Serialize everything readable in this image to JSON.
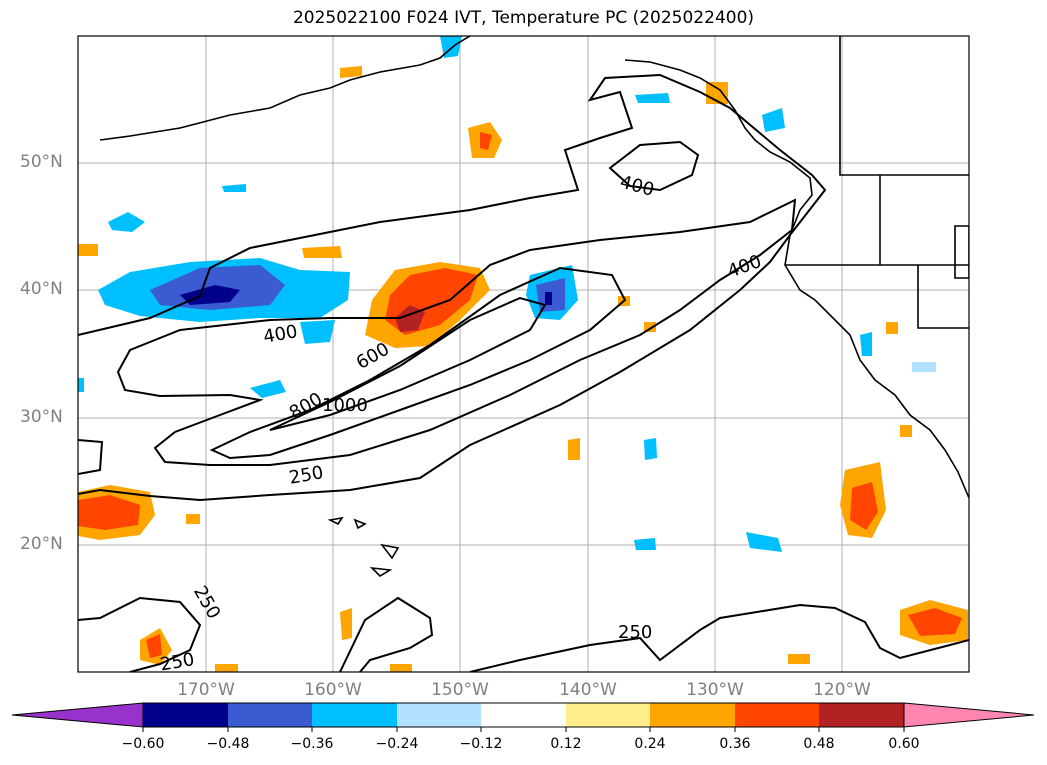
{
  "title": "2025022100 F024 IVT, Temperature PC (2025022400)",
  "lat_labels": [
    "50°N",
    "40°N",
    "30°N",
    "20°N"
  ],
  "lon_labels": [
    "170°W",
    "160°W",
    "150°W",
    "140°W",
    "130°W",
    "120°W"
  ],
  "contour_labels": [
    "400",
    "400",
    "400",
    "600",
    "800",
    "1000",
    "250",
    "250",
    "250",
    "250"
  ],
  "colorbar": {
    "ticks": [
      "−0.60",
      "−0.48",
      "−0.36",
      "−0.24",
      "−0.12",
      "0.12",
      "0.24",
      "0.36",
      "0.48",
      "0.60"
    ],
    "colors": [
      "#9932cc",
      "#00008b",
      "#3a5bd1",
      "#00bfff",
      "#b0e2ff",
      "#ffffff",
      "#ffec8b",
      "#ffa500",
      "#ff4500",
      "#b22222",
      "#ff86b0"
    ]
  }
}
